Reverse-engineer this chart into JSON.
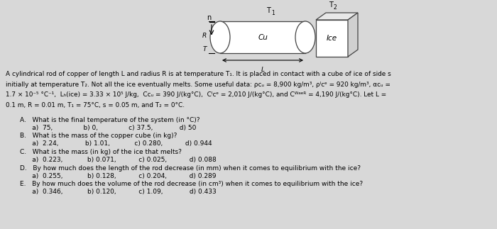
{
  "bg_color": "#d8d8d8",
  "text_lines": [
    "A cylindrical rod of copper of length L and radius R is at temperature T₁. It is placed in contact with a cube of ice of side s",
    "initially at temperature T₂. Not all the ice eventually melts. Some useful data: ρᴄᵤ = 8,900 kg/m³, ρᴵᴄᵉ = 920 kg/m³, αᴄᵤ =",
    "1.7 × 10⁻⁵ °C⁻¹,  Lₕ(ice) = 3.33 × 10⁵ J/kg,  Cᴄᵤ = 390 J/(kg°C),  Cᴵᴄᵉ = 2,010 J/(kg°C), and Cᵂᵃᵉᴿ = 4,190 J/(kg°C). Let L =",
    "0.1 m, R = 0.01 m, T₁ = 75°C, s = 0.05 m, and T₂ = 0°C."
  ],
  "questions": [
    {
      "q": "A.   What is the final temperature of the system (in °C)?",
      "a": "      a)  75,               b) 0,               c) 37.5,             d) 50"
    },
    {
      "q": "B.   What is the mass of the copper cube (in kg)?",
      "a": "      a)  2.24,             b) 1.01,            c) 0.280,           d) 0.944"
    },
    {
      "q": "C.   What is the mass (in kg) of the ice that melts?",
      "a": "      a)  0.223,            b) 0.071,           c) 0.025,           d) 0.088"
    },
    {
      "q": "D.   By how much does the length of the rod decrease (in mm) when it comes to equilibrium with the ice?",
      "a": "      a)  0.255,            b) 0.128,           c) 0.204,           d) 0.289"
    },
    {
      "q": "E.   By how much does the volume of the rod decrease (in cm³) when it comes to equilibrium with the ice?",
      "a": "      a)  0.346,            b) 0.120,           c) 1.09,             d) 0.433"
    }
  ]
}
